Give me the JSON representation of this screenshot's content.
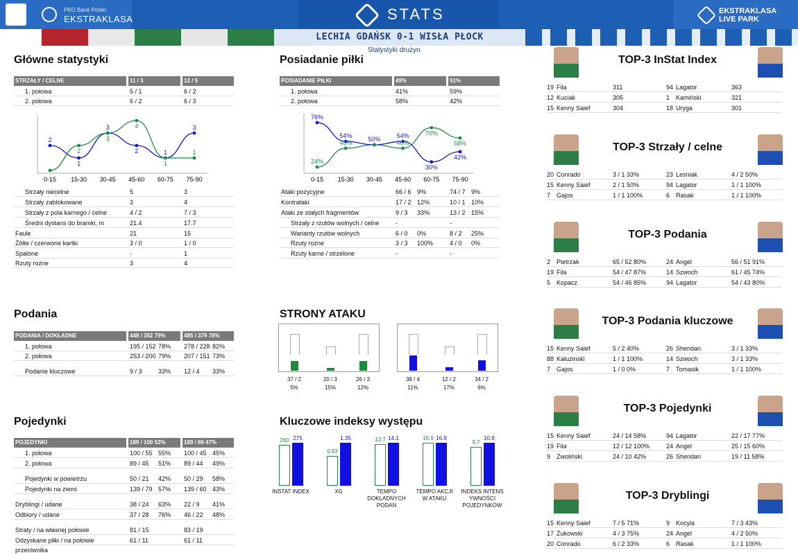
{
  "header": {
    "bank": "PKO Bank Polski",
    "league": "EKSTRAKLASA",
    "stats": "STATS",
    "brand1": "EKSTRAKLASA",
    "brand2": "LIVE PARK"
  },
  "match": "LECHIA GDAŃSK 0-1 WISŁA PŁOCK",
  "subtitle": "Statystyki drużyn",
  "main": {
    "title": "Główne statystyki",
    "head": {
      "label": "STRZAŁY / CELNE",
      "a": "11 / 3",
      "b": "12 / 5"
    },
    "rows": [
      {
        "label": "1. połowa",
        "a": "5 / 1",
        "b": "6 / 2"
      },
      {
        "label": "2. połowa",
        "a": "6 / 2",
        "b": "6 / 3"
      }
    ],
    "rows2": [
      {
        "label": "Strzały niecelne",
        "a": "5",
        "b": "3"
      },
      {
        "label": "Strzały zablokowane",
        "a": "3",
        "b": "4"
      },
      {
        "label": "Strzały z pola karnego / celne",
        "a": "4 / 2",
        "b": "7 / 3"
      },
      {
        "label": "Średni dystans do bramki, m",
        "a": "21.4",
        "b": "17.7"
      },
      {
        "label": "Faule",
        "a": "21",
        "b": "15"
      },
      {
        "label": "Żółte / czerwone kartki",
        "a": "3 / 0",
        "b": "1 / 0"
      },
      {
        "label": "Spalone",
        "a": "-",
        "b": "1"
      },
      {
        "label": "Rzuty rożne",
        "a": "3",
        "b": "4"
      }
    ]
  },
  "chart_data": [
    {
      "type": "line",
      "categories": [
        "0-15",
        "15-30",
        "30-45",
        "45-60",
        "60-75",
        "75-90"
      ],
      "series": [
        {
          "values": [
            2,
            1,
            3,
            2,
            1,
            3
          ]
        },
        {
          "values": [
            0,
            2,
            3,
            4,
            1,
            1
          ]
        }
      ],
      "data_labels": [
        [
          "2",
          "1",
          "3",
          "2",
          "1",
          "3"
        ],
        [
          "",
          "2",
          "3",
          "4",
          "1",
          "1"
        ]
      ]
    },
    {
      "type": "line",
      "categories": [
        "0-15",
        "15-30",
        "30-45",
        "45-60",
        "60-75",
        "75-90"
      ],
      "series": [
        {
          "values": [
            76,
            54,
            50,
            54,
            30,
            42
          ]
        },
        {
          "values": [
            24,
            46,
            50,
            46,
            70,
            58
          ]
        }
      ],
      "data_labels": [
        [
          "76%",
          "54%",
          "50%",
          "54%",
          "30%",
          "42%"
        ],
        [
          "24%",
          "46%",
          "",
          "46%",
          "70%",
          "58%"
        ]
      ]
    },
    {
      "type": "bar",
      "categories": [
        "INSTAT INDEX",
        "XG",
        "TEMPO DOKLADNYCH PODAŃ",
        "TEMPO AKCJI W ATAKU",
        "INDEKS INTENS YWNOŚCI POJEDYNKÓW"
      ],
      "series": [
        {
          "values": [
            260,
            0.93,
            13.7,
            16.9,
            9.7
          ]
        },
        {
          "values": [
            275,
            1.35,
            14.1,
            16.9,
            10.8
          ]
        }
      ]
    }
  ],
  "possession": {
    "title": "Posiadanie piłki",
    "head": {
      "label": "POSIADANIE PIŁKI",
      "a": "49%",
      "b": "51%"
    },
    "rows": [
      {
        "label": "1. połowa",
        "a": "41%",
        "b": "59%"
      },
      {
        "label": "2. połowa",
        "a": "58%",
        "b": "42%"
      }
    ],
    "rows2": [
      {
        "label": "Ataki pozycyjne",
        "a": "66 / 6",
        "ap": "9%",
        "b": "74 / 7",
        "bp": "9%"
      },
      {
        "label": "Kontrataki",
        "a": "17 / 2",
        "ap": "12%",
        "b": "10 / 1",
        "bp": "10%"
      },
      {
        "label": "Ataki ze stałych fragmentów",
        "a": "9 / 3",
        "ap": "33%",
        "b": "13 / 2",
        "bp": "15%"
      },
      {
        "label": "Strzały z rzutów wolnych / celne",
        "a": "-",
        "ap": "",
        "b": "-",
        "bp": ""
      },
      {
        "label": "Warianty rzutów wolnych",
        "a": "6 / 0",
        "ap": "0%",
        "b": "8 / 2",
        "bp": "25%"
      },
      {
        "label": "Rzuty rożne",
        "a": "3 / 3",
        "ap": "100%",
        "b": "4 / 0",
        "bp": "0%"
      },
      {
        "label": "Rzuty karne / strzelone",
        "a": "-",
        "ap": "",
        "b": "-",
        "bp": ""
      }
    ]
  },
  "passes": {
    "title": "Podania",
    "head": {
      "label": "PODANIA / DOKŁADNE",
      "a": "448 / 352",
      "ap": "79%",
      "b": "485 / 379",
      "bp": "78%"
    },
    "rows": [
      {
        "label": "1. połowa",
        "a": "195 / 152",
        "ap": "78%",
        "b": "278 / 228",
        "bp": "82%"
      },
      {
        "label": "2. połowa",
        "a": "253 / 200",
        "ap": "79%",
        "b": "207 / 151",
        "bp": "73%"
      },
      {
        "label": "Podanie kluczowe",
        "a": "9 / 3",
        "ap": "33%",
        "b": "12 / 4",
        "bp": "33%"
      }
    ]
  },
  "attack": {
    "title": "STRONY ATAKU",
    "left": [
      {
        "v": "37 / 2",
        "p": "5%"
      },
      {
        "v": "20 / 3",
        "p": "15%"
      },
      {
        "v": "26 / 3",
        "p": "12%"
      }
    ],
    "right": [
      {
        "v": "38 / 4",
        "p": "11%"
      },
      {
        "v": "12 / 2",
        "p": "17%"
      },
      {
        "v": "34 / 2",
        "p": "6%"
      }
    ],
    "colors": {
      "home": "#1e8a3c",
      "away": "#1010e0"
    }
  },
  "duels": {
    "title": "Pojedynki",
    "head": {
      "label": "POJEDYNKI",
      "a": "189 / 100",
      "ap": "53%",
      "b": "189 / 89",
      "bp": "47%"
    },
    "rows": [
      {
        "label": "1. połowa",
        "a": "100 / 55",
        "ap": "55%",
        "b": "100 / 45",
        "bp": "45%"
      },
      {
        "label": "2. połowa",
        "a": "89 / 45",
        "ap": "51%",
        "b": "89 / 44",
        "bp": "49%"
      },
      {
        "label": "Pojedynki w powietrzu",
        "a": "50 / 21",
        "ap": "42%",
        "b": "50 / 29",
        "bp": "58%"
      },
      {
        "label": "Pojedynki na ziemi",
        "a": "139 / 79",
        "ap": "57%",
        "b": "139 / 60",
        "bp": "43%"
      },
      {
        "label": "Dryblingi / udane",
        "a": "38 / 24",
        "ap": "63%",
        "b": "22 / 9",
        "bp": "41%"
      },
      {
        "label": "Odbiory / udane",
        "a": "37 / 28",
        "ap": "76%",
        "b": "46 / 22",
        "bp": "48%"
      },
      {
        "label": "Straty / na własnej połowie",
        "a": "81 / 15",
        "ap": "",
        "b": "83 / 19",
        "bp": ""
      },
      {
        "label": "Odzyskane piłki / na połowie przeciwnika",
        "a": "61 / 11",
        "ap": "",
        "b": "61 / 11",
        "bp": ""
      }
    ]
  },
  "keyidx": {
    "title": "Kluczowe indeksy występu",
    "labels": [
      "INSTAT INDEX",
      "XG",
      "TEMPO DOKLADNYCH PODAŃ",
      "TEMPO AKCJI W ATAKU",
      "INDEKS INTENS YWNOŚCI POJEDYNKÓW"
    ],
    "home": [
      "260",
      "0.93",
      "13.7",
      "16.9",
      "9.7"
    ],
    "away": [
      "275",
      "1.35",
      "14.1",
      "16.9",
      "10.8"
    ]
  },
  "tops": [
    {
      "title": "TOP-3 InStat Index",
      "rows": [
        {
          "hn": "19",
          "hp": "Fila",
          "hv": "311",
          "an": "94",
          "ap": "Lagator",
          "av": "363"
        },
        {
          "hn": "12",
          "hp": "Kuciak",
          "hv": "305",
          "an": "1",
          "ap": "Kamiński",
          "av": "321"
        },
        {
          "hn": "15",
          "hp": "Kenny Saief",
          "hv": "304",
          "an": "18",
          "ap": "Uryga",
          "av": "301"
        }
      ]
    },
    {
      "title": "TOP-3 Strzały / celne",
      "rows": [
        {
          "hn": "20",
          "hp": "Conrado",
          "hv": "3 / 1  33%",
          "an": "23",
          "ap": "Lesniak",
          "av": "4 / 2  50%"
        },
        {
          "hn": "15",
          "hp": "Kenny Saief",
          "hv": "2 / 1  50%",
          "an": "94",
          "ap": "Lagator",
          "av": "1 / 1  100%"
        },
        {
          "hn": "7",
          "hp": "Gajos",
          "hv": "1 / 1  100%",
          "an": "6",
          "ap": "Rasak",
          "av": "1 / 1  100%"
        }
      ]
    },
    {
      "title": "TOP-3 Podania",
      "rows": [
        {
          "hn": "2",
          "hp": "Pietrzak",
          "hv": "65 / 52 80%",
          "an": "24",
          "ap": "Angel",
          "av": "56 / 51 91%"
        },
        {
          "hn": "19",
          "hp": "Fila",
          "hv": "54 / 47 87%",
          "an": "14",
          "ap": "Szwoch",
          "av": "61 / 45 74%"
        },
        {
          "hn": "5",
          "hp": "Kopacz",
          "hv": "54 / 46 85%",
          "an": "94",
          "ap": "Lagator",
          "av": "54 / 43 80%"
        }
      ]
    },
    {
      "title": "TOP-3 Podania kluczowe",
      "rows": [
        {
          "hn": "15",
          "hp": "Kenny Saief",
          "hv": "5 / 2  40%",
          "an": "26",
          "ap": "Sheridan",
          "av": "3 / 1  33%"
        },
        {
          "hn": "88",
          "hp": "Kałużinski",
          "hv": "1 / 1  100%",
          "an": "14",
          "ap": "Szwoch",
          "av": "3 / 1  33%"
        },
        {
          "hn": "7",
          "hp": "Gajos",
          "hv": "1 / 0  0%",
          "an": "7",
          "ap": "Tomasik",
          "av": "1 / 1  100%"
        }
      ]
    },
    {
      "title": "TOP-3 Pojedynki",
      "rows": [
        {
          "hn": "15",
          "hp": "Kenny Saief",
          "hv": "24 / 14 58%",
          "an": "94",
          "ap": "Lagator",
          "av": "22 / 17 77%"
        },
        {
          "hn": "19",
          "hp": "Fila",
          "hv": "12 / 12 100%",
          "an": "24",
          "ap": "Angel",
          "av": "25 / 15 60%"
        },
        {
          "hn": "9",
          "hp": "Zwoliński",
          "hv": "24 / 10 42%",
          "an": "26",
          "ap": "Sheridan",
          "av": "19 / 11 58%"
        }
      ]
    },
    {
      "title": "TOP-3 Dryblingi",
      "rows": [
        {
          "hn": "15",
          "hp": "Kenny Saief",
          "hv": "7 / 5  71%",
          "an": "9",
          "ap": "Kocyla",
          "av": "7 / 3  43%"
        },
        {
          "hn": "17",
          "hp": "Żukowski",
          "hv": "4 / 3  75%",
          "an": "24",
          "ap": "Angel",
          "av": "4 / 2  50%"
        },
        {
          "hn": "20",
          "hp": "Conrado",
          "hv": "6 / 2  33%",
          "an": "6",
          "ap": "Rasak",
          "av": "1 / 1  100%"
        }
      ]
    }
  ]
}
